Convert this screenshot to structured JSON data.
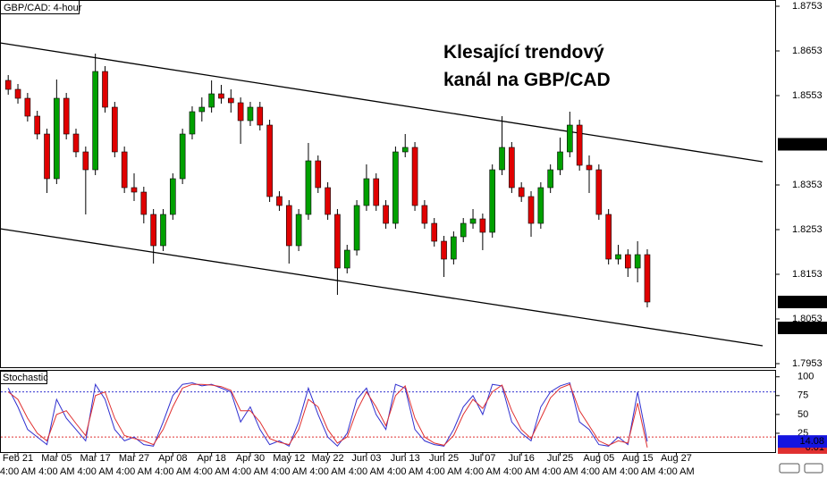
{
  "chart_data": [
    {
      "type": "candlestick",
      "title": "GBP/CAD: 4-hour",
      "annotation": [
        "Klesající trendový",
        "kanál na GBP/CAD"
      ],
      "categories": [
        null,
        "Feb 21",
        null,
        null,
        null,
        "Mar 05",
        null,
        null,
        null,
        "Mar 17",
        null,
        null,
        null,
        "Mar 27",
        null,
        null,
        null,
        "Apr 08",
        null,
        null,
        null,
        "Apr 18",
        null,
        null,
        null,
        "Apr 30",
        null,
        null,
        null,
        "May 12",
        null,
        null,
        null,
        "May 22",
        null,
        null,
        null,
        "Jun 03",
        null,
        null,
        null,
        "Jun 13",
        null,
        null,
        null,
        "Jun 25",
        null,
        null,
        null,
        "Jul 07",
        null,
        null,
        null,
        "Jul 16",
        null,
        null,
        null,
        "Jul 25",
        null,
        null,
        null,
        "Aug 05",
        null,
        null,
        null,
        "Aug 15",
        null,
        null,
        null,
        "Aug 27"
      ],
      "category_times": [
        null,
        "4:00 AM",
        null,
        null,
        null,
        "4:00 AM",
        null,
        null,
        null,
        "4:00 AM",
        null,
        null,
        null,
        "4:00 AM",
        null,
        null,
        null,
        "4:00 AM",
        null,
        null,
        null,
        "4:00 AM",
        null,
        null,
        null,
        "4:00 AM",
        null,
        null,
        null,
        "4:00 AM",
        null,
        null,
        null,
        "4:00 AM",
        null,
        null,
        null,
        "4:00 AM",
        null,
        null,
        null,
        "4:00 AM",
        null,
        null,
        null,
        "4:00 AM",
        null,
        null,
        null,
        "4:00 AM",
        null,
        null,
        null,
        "4:00 AM",
        null,
        null,
        null,
        "4:00 AM",
        null,
        null,
        null,
        "4:00 AM",
        null,
        null,
        null,
        "4:00 AM",
        null,
        null,
        null,
        "4:00 AM"
      ],
      "open": [
        1.8587,
        1.8567,
        1.8547,
        1.8507,
        1.8467,
        1.8367,
        1.8547,
        1.8467,
        1.8427,
        1.8387,
        1.8607,
        1.8527,
        1.8427,
        1.8347,
        1.8337,
        1.8287,
        1.8217,
        1.8287,
        1.8367,
        1.8467,
        1.8517,
        1.8527,
        1.8557,
        1.8547,
        1.8537,
        1.8497,
        1.8527,
        1.8487,
        1.8327,
        1.8307,
        1.8217,
        1.8287,
        1.8407,
        1.8347,
        1.8287,
        1.8167,
        1.8207,
        1.8307,
        1.8367,
        1.8307,
        1.8267,
        1.8427,
        1.8437,
        1.8307,
        1.8267,
        1.8227,
        1.8187,
        1.8237,
        1.8267,
        1.8277,
        1.8247,
        1.8387,
        1.8437,
        1.8347,
        1.8327,
        1.8267,
        1.8347,
        1.8387,
        1.8427,
        1.8487,
        1.8397,
        1.8387,
        1.8287,
        1.8187,
        1.8197,
        1.8167,
        1.8197,
        null,
        null,
        null
      ],
      "high": [
        1.8599,
        1.8579,
        1.8559,
        1.8519,
        1.8479,
        1.8589,
        1.8559,
        1.8479,
        1.8439,
        1.8647,
        1.8619,
        1.8539,
        1.8439,
        1.8379,
        1.8349,
        1.8299,
        1.8299,
        1.8379,
        1.8479,
        1.8529,
        1.8549,
        1.8587,
        1.8577,
        1.8567,
        1.8549,
        1.8539,
        1.8539,
        1.8499,
        1.8339,
        1.8319,
        1.8299,
        1.8447,
        1.8419,
        1.8359,
        1.8299,
        1.8219,
        1.8319,
        1.8399,
        1.8379,
        1.8319,
        1.8439,
        1.8467,
        1.8449,
        1.8319,
        1.8279,
        1.8239,
        1.8249,
        1.8279,
        1.8299,
        1.8289,
        1.8399,
        1.8507,
        1.8449,
        1.8359,
        1.8339,
        1.8359,
        1.8399,
        1.8459,
        1.8517,
        1.8499,
        1.8419,
        1.8399,
        1.8299,
        1.8219,
        1.8209,
        1.8227,
        1.8209,
        null,
        null,
        null
      ],
      "low": [
        1.8555,
        1.8535,
        1.8495,
        1.8455,
        1.8335,
        1.8355,
        1.8455,
        1.8415,
        1.8287,
        1.8375,
        1.8515,
        1.8415,
        1.8335,
        1.8317,
        1.8267,
        1.8177,
        1.8205,
        1.8275,
        1.8355,
        1.8455,
        1.8495,
        1.8515,
        1.8535,
        1.8515,
        1.8445,
        1.8485,
        1.8475,
        1.8315,
        1.8295,
        1.8177,
        1.8205,
        1.8275,
        1.8335,
        1.8275,
        1.8107,
        1.8155,
        1.8195,
        1.8295,
        1.8295,
        1.8255,
        1.8255,
        1.8415,
        1.8295,
        1.8255,
        1.8215,
        1.8147,
        1.8175,
        1.8225,
        1.8255,
        1.8207,
        1.8235,
        1.8375,
        1.8335,
        1.8315,
        1.8237,
        1.8255,
        1.8335,
        1.8375,
        1.8415,
        1.8385,
        1.8335,
        1.8275,
        1.8175,
        1.8175,
        1.8147,
        1.8135,
        1.8079,
        null,
        null,
        null
      ],
      "close": [
        1.8567,
        1.8547,
        1.8507,
        1.8467,
        1.8367,
        1.8547,
        1.8467,
        1.8427,
        1.8387,
        1.8607,
        1.8527,
        1.8427,
        1.8347,
        1.8337,
        1.8287,
        1.8217,
        1.8287,
        1.8367,
        1.8467,
        1.8517,
        1.8527,
        1.8557,
        1.8547,
        1.8537,
        1.8497,
        1.8527,
        1.8487,
        1.8327,
        1.8307,
        1.8217,
        1.8287,
        1.8407,
        1.8347,
        1.8287,
        1.8167,
        1.8207,
        1.8307,
        1.8367,
        1.8307,
        1.8267,
        1.8427,
        1.8437,
        1.8307,
        1.8267,
        1.8227,
        1.8187,
        1.8237,
        1.8267,
        1.8277,
        1.8247,
        1.8387,
        1.8437,
        1.8347,
        1.8327,
        1.8267,
        1.8347,
        1.8387,
        1.8427,
        1.8487,
        1.8397,
        1.8387,
        1.8287,
        1.8187,
        1.8197,
        1.8167,
        1.8197,
        1.8091,
        null,
        null,
        null
      ],
      "up_color": "#00a000",
      "down_color": "#e00000",
      "ylim": [
        1.7943,
        1.8767
      ],
      "yticks": [
        1.7953,
        1.8053,
        1.8153,
        1.8253,
        1.8353,
        1.8553,
        1.8653,
        1.8753
      ],
      "price_markers": [
        1.8444,
        1.8091,
        1.8033
      ],
      "trendlines": [
        {
          "values": [
            1.8671,
            1.8405
          ]
        },
        {
          "values": [
            1.8255,
            1.7993
          ]
        }
      ]
    },
    {
      "type": "line",
      "title": "Stochastic",
      "series": [
        {
          "color": "#3030d0",
          "values": [
            85,
            60,
            30,
            20,
            10,
            70,
            45,
            30,
            15,
            90,
            70,
            30,
            15,
            20,
            10,
            8,
            40,
            75,
            90,
            92,
            88,
            90,
            85,
            80,
            40,
            60,
            30,
            10,
            15,
            8,
            40,
            85,
            50,
            20,
            8,
            25,
            70,
            85,
            50,
            30,
            90,
            85,
            30,
            15,
            10,
            8,
            30,
            60,
            75,
            50,
            90,
            88,
            40,
            25,
            15,
            60,
            80,
            88,
            92,
            40,
            30,
            10,
            8,
            20,
            10,
            80,
            14.08,
            null,
            null,
            null
          ]
        },
        {
          "color": "#e03030",
          "values": [
            80,
            70,
            45,
            25,
            15,
            50,
            55,
            38,
            22,
            75,
            80,
            45,
            22,
            18,
            15,
            10,
            30,
            60,
            85,
            90,
            90,
            89,
            87,
            82,
            55,
            55,
            40,
            18,
            13,
            10,
            30,
            70,
            60,
            30,
            12,
            20,
            55,
            80,
            60,
            35,
            75,
            88,
            45,
            20,
            12,
            9,
            22,
            50,
            70,
            58,
            80,
            89,
            55,
            30,
            18,
            45,
            72,
            85,
            90,
            55,
            35,
            15,
            9,
            15,
            12,
            65,
            6.01,
            null,
            null,
            null
          ]
        }
      ],
      "levels": [
        {
          "value": 80,
          "color": "#3030d0"
        },
        {
          "value": 20,
          "color": "#e03030"
        }
      ],
      "markers": [
        {
          "value": 6.01,
          "color": "#e03030"
        },
        {
          "value": 14.08,
          "color": "#1515e0"
        }
      ],
      "ylim": [
        0,
        108
      ],
      "yticks": [
        25,
        50,
        75,
        100
      ]
    }
  ]
}
